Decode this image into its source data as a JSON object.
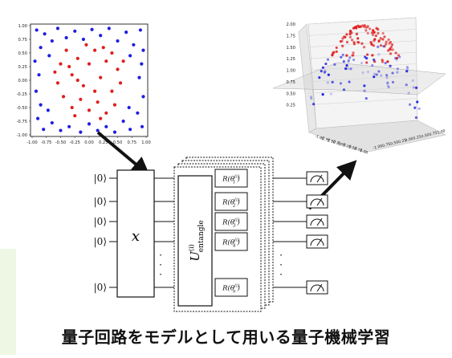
{
  "caption": "量子回路をモデルとして用いる量子機械学習",
  "colors": {
    "class_a": "#1f1fe0",
    "class_b": "#e01f1f",
    "strip": "#eef7e4"
  },
  "chart_data": [
    {
      "type": "scatter",
      "xlim": [
        -1.0,
        1.0
      ],
      "ylim": [
        -1.0,
        1.0
      ],
      "x_ticks": [
        "-1.00",
        "-0.75",
        "-0.50",
        "-0.25",
        "0.00",
        "0.25",
        "0.50",
        "0.75",
        "1.00"
      ],
      "y_ticks": [
        "1.00",
        "0.75",
        "0.50",
        "0.25",
        "0.00",
        "-0.25",
        "-0.50",
        "-0.75",
        "-1.00"
      ],
      "series": [
        {
          "color": "#1f1fe0",
          "points": [
            [
              -0.92,
              0.92
            ],
            [
              -0.85,
              0.6
            ],
            [
              -0.78,
              0.85
            ],
            [
              -0.65,
              0.72
            ],
            [
              -0.55,
              0.95
            ],
            [
              -0.4,
              0.78
            ],
            [
              -0.25,
              0.9
            ],
            [
              -0.1,
              0.75
            ],
            [
              0.05,
              0.93
            ],
            [
              0.2,
              0.82
            ],
            [
              0.35,
              0.95
            ],
            [
              0.5,
              0.72
            ],
            [
              0.65,
              0.88
            ],
            [
              0.78,
              0.65
            ],
            [
              0.9,
              0.92
            ],
            [
              0.95,
              0.55
            ],
            [
              -0.95,
              0.35
            ],
            [
              -0.88,
              0.1
            ],
            [
              -0.93,
              -0.2
            ],
            [
              -0.85,
              -0.45
            ],
            [
              -0.9,
              -0.7
            ],
            [
              -0.8,
              -0.9
            ],
            [
              -0.65,
              -0.78
            ],
            [
              -0.5,
              -0.92
            ],
            [
              -0.35,
              -0.85
            ],
            [
              -0.15,
              -0.95
            ],
            [
              0.0,
              -0.8
            ],
            [
              0.15,
              -0.92
            ],
            [
              0.3,
              -0.85
            ],
            [
              0.45,
              -0.95
            ],
            [
              0.6,
              -0.75
            ],
            [
              0.72,
              -0.9
            ],
            [
              0.85,
              -0.6
            ],
            [
              0.93,
              -0.85
            ],
            [
              0.95,
              -0.3
            ],
            [
              0.88,
              0.05
            ],
            [
              0.92,
              0.3
            ],
            [
              -0.7,
              0.45
            ],
            [
              0.72,
              0.45
            ],
            [
              -0.72,
              -0.55
            ],
            [
              0.7,
              -0.5
            ]
          ]
        },
        {
          "color": "#e01f1f",
          "points": [
            [
              -0.5,
              0.3
            ],
            [
              -0.4,
              0.55
            ],
            [
              -0.3,
              0.1
            ],
            [
              -0.2,
              0.4
            ],
            [
              -0.1,
              -0.1
            ],
            [
              0.0,
              0.3
            ],
            [
              0.1,
              0.55
            ],
            [
              0.2,
              0.05
            ],
            [
              0.3,
              0.35
            ],
            [
              0.4,
              -0.2
            ],
            [
              0.5,
              0.2
            ],
            [
              -0.45,
              -0.3
            ],
            [
              -0.3,
              -0.5
            ],
            [
              -0.15,
              -0.35
            ],
            [
              0.0,
              -0.55
            ],
            [
              0.15,
              -0.4
            ],
            [
              0.3,
              -0.6
            ],
            [
              0.45,
              -0.45
            ],
            [
              -0.55,
              -0.05
            ],
            [
              0.55,
              -0.05
            ],
            [
              -0.2,
              0.0
            ],
            [
              0.1,
              -0.2
            ],
            [
              -0.35,
              0.25
            ],
            [
              0.25,
              0.6
            ],
            [
              -0.05,
              0.65
            ],
            [
              0.4,
              0.5
            ],
            [
              -0.6,
              0.15
            ],
            [
              0.6,
              0.35
            ],
            [
              -0.25,
              -0.65
            ],
            [
              0.2,
              -0.7
            ]
          ]
        }
      ]
    },
    {
      "type": "scatter",
      "zlim": [
        0.0,
        2.0
      ],
      "z_ticks": [
        "2.00",
        "1.75",
        "1.50",
        "1.25",
        "1.00",
        "0.75",
        "0.50",
        "0.25"
      ],
      "x_ticks": [
        "-1.00",
        "-0.75",
        "-0.50",
        "-0.25",
        "0.00",
        "0.25",
        "0.50",
        "0.75",
        "1.00"
      ],
      "y_ticks": [
        "-1.00",
        "-0.75",
        "-0.50",
        "-0.25",
        "0.00",
        "0.25",
        "0.50",
        "0.75",
        "1.00"
      ],
      "series": [
        {
          "color": "#e01f1f"
        },
        {
          "color": "#1f1fe0"
        }
      ]
    }
  ],
  "circuit": {
    "qubit_label": "|0⟩",
    "encoder_label": "x",
    "entangle_label": "U",
    "entangle_super": "(i)",
    "entangle_sub": "entangle",
    "rotation_prefix": "R(θ",
    "rotation_super": "(i)",
    "rotation_subs": [
      "1",
      "2",
      "3",
      "4",
      "n"
    ],
    "dots": "·"
  }
}
